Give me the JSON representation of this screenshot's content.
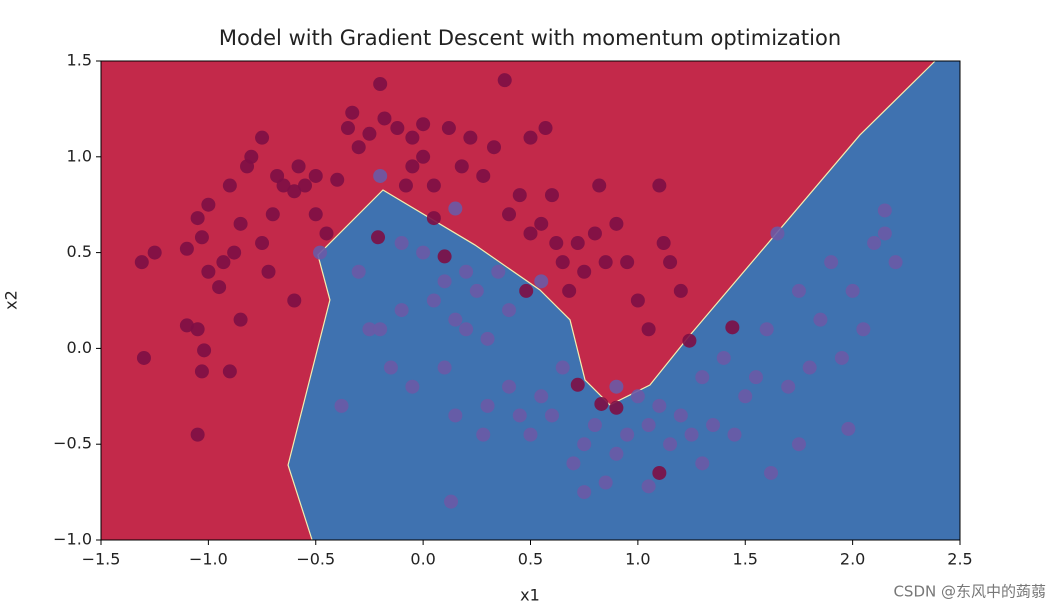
{
  "chart_data": {
    "type": "scatter",
    "title": "Model with Gradient Descent with momentum optimization",
    "x_label": "x1",
    "y_label": "x2",
    "xlim": [
      -1.5,
      2.5
    ],
    "ylim": [
      -1.0,
      1.5
    ],
    "xticks": [
      {
        "value": -1.5,
        "label": "−1.5"
      },
      {
        "value": -1.0,
        "label": "−1.0"
      },
      {
        "value": -0.5,
        "label": "−0.5"
      },
      {
        "value": 0.0,
        "label": "0.0"
      },
      0.5,
      {
        "value": 1.0,
        "label": "1.0"
      },
      1.5,
      {
        "value": 2.0,
        "label": "2.0"
      },
      2.5
    ],
    "yticks": [
      {
        "value": -1.0,
        "label": "−1.0"
      },
      {
        "value": -0.5,
        "label": "−0.5"
      },
      {
        "value": 0.0,
        "label": "0.0"
      },
      0.5,
      {
        "value": 1.0,
        "label": "1.0"
      },
      1.5
    ],
    "region_colors": [
      "#c3294a",
      "#3f72b0"
    ],
    "decision_boundary": {
      "x": [
        -0.517,
        -0.629,
        -0.434,
        -0.49,
        -0.187,
        0.241,
        0.544,
        0.684,
        0.754,
        0.87,
        1.056,
        1.243,
        2.034,
        2.384
      ],
      "y": [
        -1.0,
        -0.609,
        0.253,
        0.487,
        0.827,
        0.54,
        0.305,
        0.149,
        -0.165,
        -0.295,
        -0.191,
        0.07,
        1.114,
        1.5
      ]
    },
    "series": [
      {
        "color": "#7d0e45",
        "x": [
          -1.31,
          -1.25,
          -1.3,
          -1.1,
          -1.1,
          -1.05,
          -1.03,
          -1.0,
          -1.0,
          -0.95,
          -0.93,
          -0.9,
          -0.88,
          -0.85,
          -0.82,
          -0.8,
          -0.75,
          -0.75,
          -0.72,
          -0.7,
          -0.68,
          -0.65,
          -0.6,
          -0.58,
          -0.55,
          -0.5,
          -0.5,
          -0.45,
          -0.4,
          -0.35,
          -0.33,
          -0.3,
          -0.25,
          -0.2,
          -0.18,
          -0.12,
          -0.08,
          -0.05,
          -0.05,
          0.0,
          0.0,
          0.05,
          0.12,
          0.18,
          0.22,
          0.28,
          0.33,
          0.38,
          0.4,
          0.45,
          0.5,
          0.5,
          0.55,
          0.57,
          0.6,
          0.62,
          0.65,
          0.68,
          0.72,
          0.75,
          0.8,
          0.82,
          0.85,
          0.9,
          0.95,
          1.0,
          1.05,
          1.1,
          1.12,
          1.15,
          1.2,
          -1.05,
          -1.03,
          -1.02,
          -1.05,
          -0.9,
          -0.85,
          -0.6,
          0.72,
          0.83,
          0.9,
          1.1,
          1.24,
          1.44,
          0.48,
          0.1,
          -0.21,
          0.05
        ],
        "y": [
          0.45,
          0.5,
          -0.05,
          0.52,
          0.12,
          0.68,
          0.58,
          0.75,
          0.4,
          0.32,
          0.45,
          0.85,
          0.5,
          0.65,
          0.95,
          1.0,
          1.1,
          0.55,
          0.4,
          0.7,
          0.9,
          0.85,
          0.82,
          0.95,
          0.85,
          0.9,
          0.7,
          0.6,
          0.88,
          1.15,
          1.23,
          1.05,
          1.12,
          1.38,
          1.2,
          1.15,
          0.85,
          1.1,
          0.95,
          1.17,
          1.0,
          0.85,
          1.15,
          0.95,
          1.1,
          0.9,
          1.05,
          1.4,
          0.7,
          0.8,
          1.1,
          0.6,
          0.65,
          1.15,
          0.8,
          0.55,
          0.45,
          0.3,
          0.55,
          0.4,
          0.6,
          0.85,
          0.45,
          0.65,
          0.45,
          0.25,
          0.1,
          0.85,
          0.55,
          0.45,
          0.3,
          -0.45,
          -0.12,
          -0.01,
          0.1,
          -0.12,
          0.15,
          0.25,
          -0.19,
          -0.29,
          -0.31,
          -0.65,
          0.04,
          0.11,
          0.3,
          0.48,
          0.58,
          0.68
        ]
      },
      {
        "color": "#6a5aa6",
        "x": [
          -0.48,
          -0.2,
          0.15,
          -0.1,
          0.0,
          0.1,
          0.2,
          0.25,
          0.35,
          0.55,
          -0.3,
          -0.25,
          -0.2,
          -0.1,
          0.05,
          0.15,
          0.2,
          0.3,
          0.4,
          -0.15,
          -0.05,
          0.1,
          0.15,
          0.28,
          0.3,
          0.4,
          0.45,
          0.5,
          0.55,
          0.6,
          0.65,
          0.7,
          0.75,
          0.8,
          0.9,
          0.95,
          1.0,
          1.05,
          1.1,
          1.15,
          1.2,
          1.25,
          1.3,
          1.35,
          1.4,
          1.45,
          1.5,
          1.55,
          1.6,
          1.62,
          1.65,
          1.7,
          1.75,
          1.8,
          1.85,
          1.9,
          1.95,
          2.0,
          2.05,
          2.1,
          2.15,
          2.2,
          2.15,
          1.98,
          0.75,
          0.85,
          1.3,
          0.13,
          -0.38,
          1.75,
          0.9,
          1.05
        ],
        "y": [
          0.5,
          0.9,
          0.73,
          0.55,
          0.5,
          0.35,
          0.4,
          0.3,
          0.4,
          0.35,
          0.4,
          0.1,
          0.1,
          0.2,
          0.25,
          0.15,
          0.1,
          0.05,
          0.2,
          -0.1,
          -0.2,
          -0.1,
          -0.35,
          -0.45,
          -0.3,
          -0.2,
          -0.35,
          -0.45,
          -0.25,
          -0.35,
          -0.1,
          -0.6,
          -0.5,
          -0.4,
          -0.55,
          -0.45,
          -0.25,
          -0.4,
          -0.3,
          -0.5,
          -0.35,
          -0.45,
          -0.15,
          -0.4,
          -0.05,
          -0.45,
          -0.25,
          -0.15,
          0.1,
          -0.65,
          0.6,
          -0.2,
          0.3,
          -0.1,
          0.15,
          0.45,
          -0.05,
          0.3,
          0.1,
          0.55,
          0.6,
          0.45,
          0.72,
          -0.42,
          -0.75,
          -0.7,
          -0.6,
          -0.8,
          -0.3,
          -0.5,
          -0.2,
          -0.72
        ]
      }
    ],
    "watermark": "CSDN @东风中的蒟蒻"
  }
}
